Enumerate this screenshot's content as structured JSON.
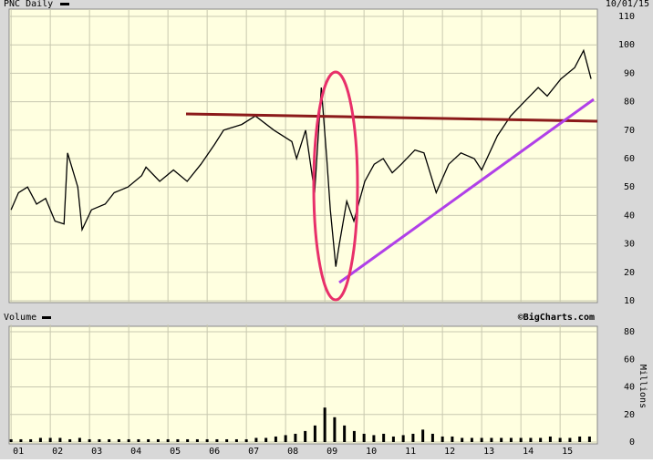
{
  "chart_data": [
    {
      "type": "line",
      "title": "PNC Daily",
      "subtitle": "10/01/15",
      "color": "#000000",
      "grid": true,
      "xlim": [
        2000.95,
        2015.95
      ],
      "ylim": [
        10,
        110
      ],
      "yticks": [
        10,
        20,
        30,
        40,
        50,
        60,
        70,
        80,
        90,
        100,
        110
      ],
      "x": [
        2001.0,
        2001.19,
        2001.42,
        2001.65,
        2001.88,
        2002.12,
        2002.35,
        2002.44,
        2002.7,
        2002.81,
        2003.05,
        2003.4,
        2003.63,
        2003.98,
        2004.33,
        2004.44,
        2004.79,
        2005.14,
        2005.49,
        2005.84,
        2006.19,
        2006.42,
        2006.88,
        2007.23,
        2007.7,
        2008.16,
        2008.28,
        2008.51,
        2008.74,
        2008.91,
        2009.05,
        2009.14,
        2009.28,
        2009.37,
        2009.56,
        2009.74,
        2010.02,
        2010.26,
        2010.49,
        2010.72,
        2010.95,
        2011.3,
        2011.53,
        2011.84,
        2012.16,
        2012.47,
        2012.81,
        2013.0,
        2013.4,
        2013.74,
        2014.09,
        2014.44,
        2014.67,
        2015.02,
        2015.37,
        2015.6,
        2015.79
      ],
      "values": [
        42,
        48,
        50,
        44,
        46,
        38,
        37,
        62,
        50,
        35,
        42,
        44,
        48,
        50,
        54,
        57,
        52,
        56,
        52,
        58,
        65,
        70,
        72,
        75,
        70,
        66,
        60,
        70,
        48,
        85,
        60,
        42,
        22,
        30,
        45,
        38,
        52,
        58,
        60,
        55,
        58,
        63,
        62,
        48,
        58,
        62,
        60,
        56,
        68,
        75,
        80,
        85,
        82,
        88,
        92,
        98,
        88
      ]
    },
    {
      "type": "bar",
      "title": "Volume",
      "source": "©BigCharts.com",
      "y_label": "Millions",
      "color": "#000000",
      "grid": true,
      "xlim": [
        2000.95,
        2015.95
      ],
      "ylim": [
        0,
        80
      ],
      "yticks": [
        0,
        20,
        40,
        60,
        80
      ],
      "xticks": [
        {
          "value": 2001,
          "label": "01"
        },
        {
          "value": 2002,
          "label": "02"
        },
        {
          "value": 2003,
          "label": "03"
        },
        {
          "value": 2004,
          "label": "04"
        },
        {
          "value": 2005,
          "label": "05"
        },
        {
          "value": 2006,
          "label": "06"
        },
        {
          "value": 2007,
          "label": "07"
        },
        {
          "value": 2008,
          "label": "08"
        },
        {
          "value": 2009,
          "label": "09"
        },
        {
          "value": 2010,
          "label": "10"
        },
        {
          "value": 2011,
          "label": "11"
        },
        {
          "value": 2012,
          "label": "12"
        },
        {
          "value": 2013,
          "label": "13"
        },
        {
          "value": 2014,
          "label": "14"
        },
        {
          "value": 2015,
          "label": "15"
        }
      ],
      "x": [
        2001.0,
        2001.25,
        2001.5,
        2001.75,
        2002.0,
        2002.25,
        2002.5,
        2002.75,
        2003.0,
        2003.25,
        2003.5,
        2003.75,
        2004.0,
        2004.25,
        2004.5,
        2004.75,
        2005.0,
        2005.25,
        2005.5,
        2005.75,
        2006.0,
        2006.25,
        2006.5,
        2006.75,
        2007.0,
        2007.25,
        2007.5,
        2007.75,
        2008.0,
        2008.25,
        2008.5,
        2008.75,
        2009.0,
        2009.25,
        2009.5,
        2009.75,
        2010.0,
        2010.25,
        2010.5,
        2010.75,
        2011.0,
        2011.25,
        2011.5,
        2011.75,
        2012.0,
        2012.25,
        2012.5,
        2012.75,
        2013.0,
        2013.25,
        2013.5,
        2013.75,
        2014.0,
        2014.25,
        2014.5,
        2014.75,
        2015.0,
        2015.25,
        2015.5,
        2015.75
      ],
      "values": [
        2,
        2,
        2,
        3,
        3,
        3,
        2,
        3,
        2,
        2,
        2,
        2,
        2,
        2,
        2,
        2,
        2,
        2,
        2,
        2,
        2,
        2,
        2,
        2,
        2,
        3,
        3,
        4,
        5,
        6,
        8,
        12,
        25,
        18,
        12,
        8,
        6,
        5,
        6,
        4,
        5,
        6,
        9,
        6,
        4,
        4,
        3,
        3,
        3,
        3,
        3,
        3,
        3,
        3,
        3,
        4,
        3,
        3,
        4,
        4
      ]
    }
  ]
}
